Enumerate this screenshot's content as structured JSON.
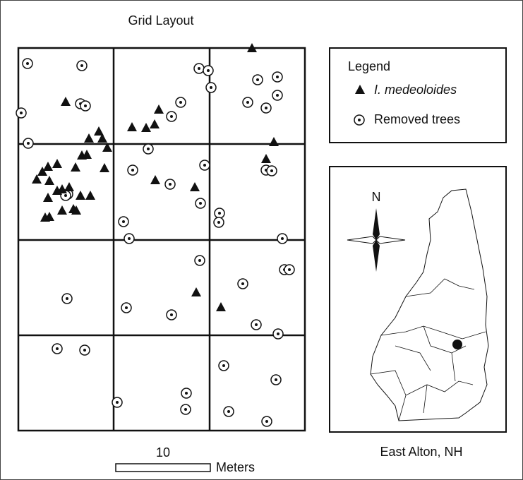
{
  "title": "Grid Layout",
  "legend": {
    "title": "Legend",
    "items": [
      "I. medeoloides",
      "Removed trees"
    ]
  },
  "compass": "N",
  "scale": {
    "value": "10",
    "unit": "Meters"
  },
  "location": "East Alton, NH"
}
